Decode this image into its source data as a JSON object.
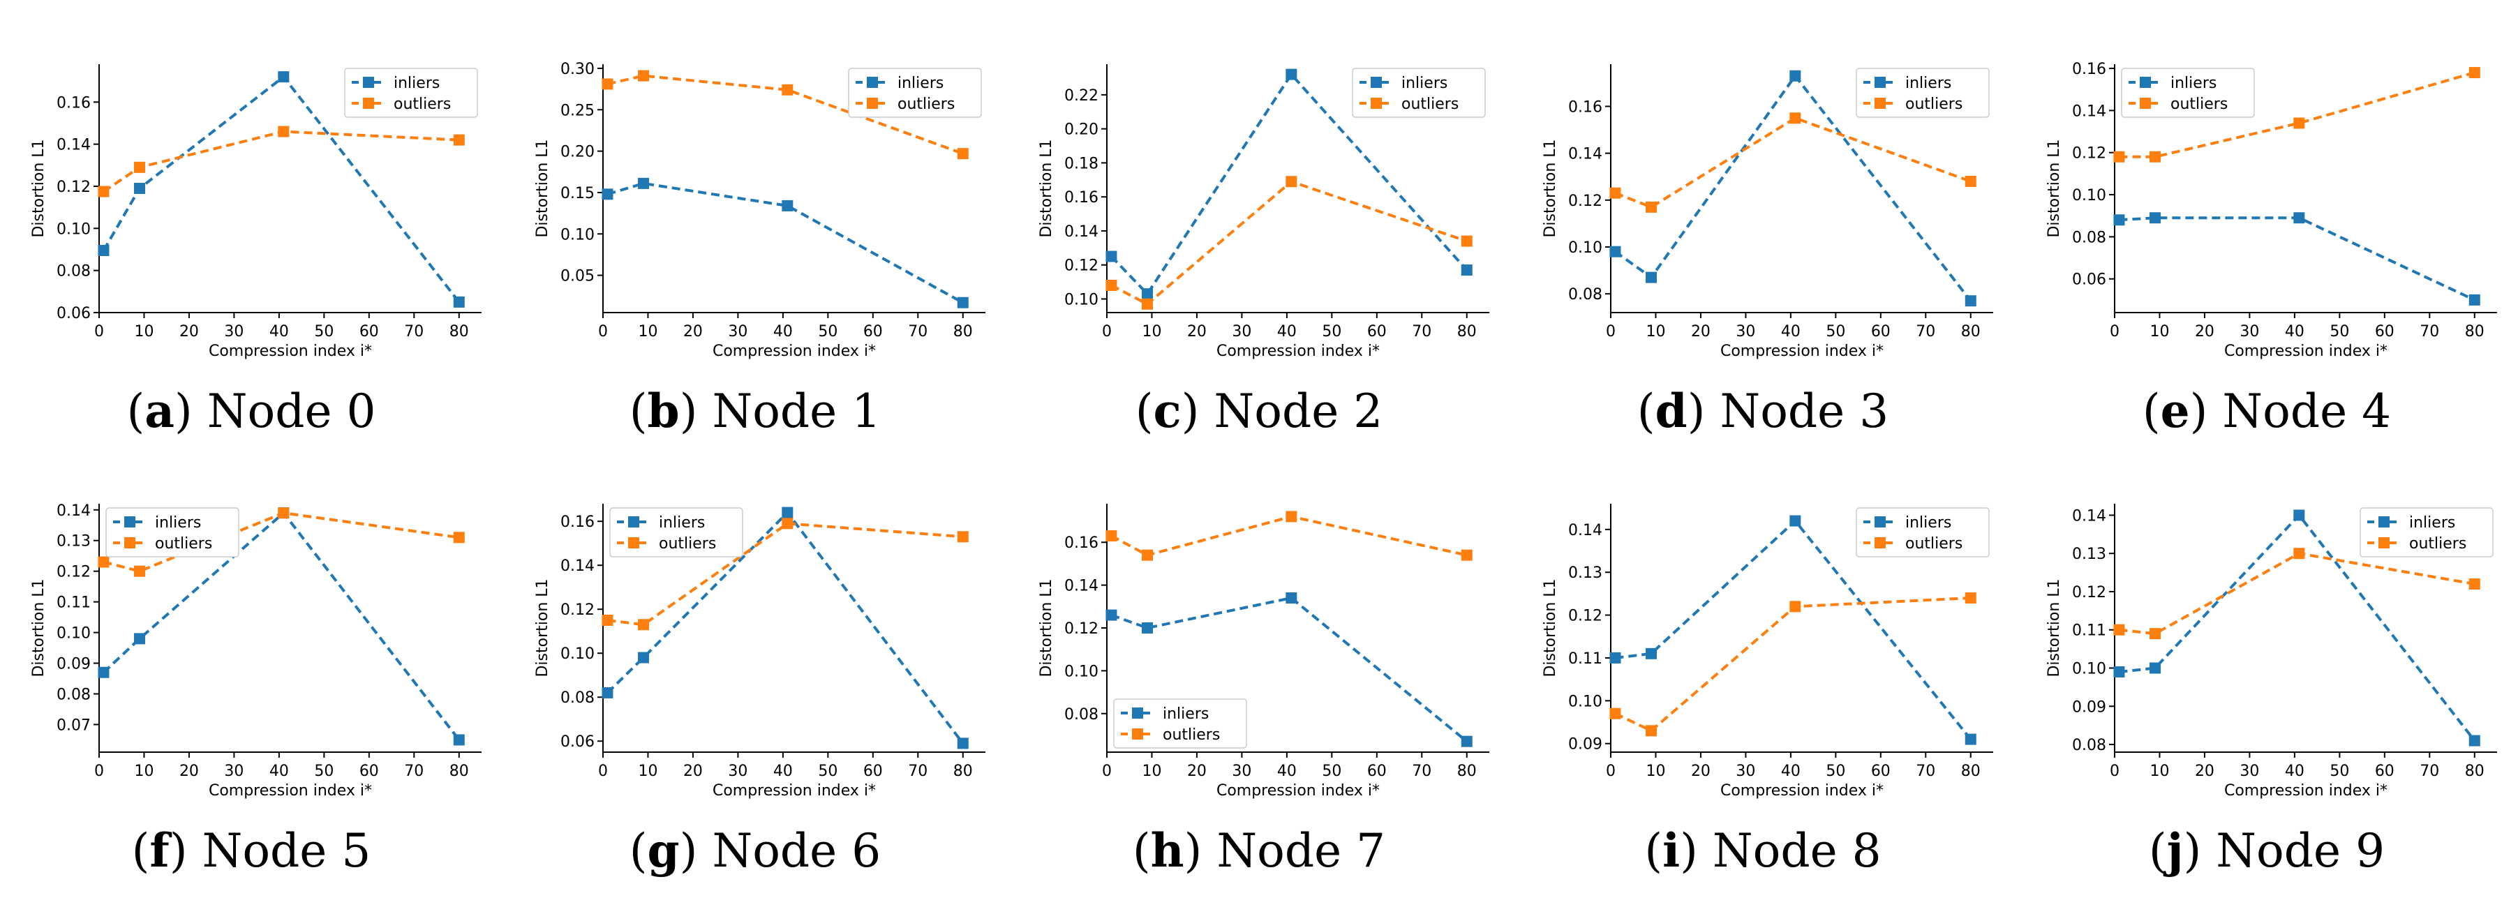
{
  "colors": {
    "inliers": "#1f77b4",
    "outliers": "#ff7f0e",
    "axis": "#000000"
  },
  "xlabel": "Compression index i*",
  "ylabel": "Distortion L1",
  "series_names": [
    "inliers",
    "outliers"
  ],
  "chart_data": [
    {
      "type": "line",
      "panel": "a",
      "caption_letter": "a",
      "caption_text": "Node 0",
      "x": [
        1,
        9,
        41,
        80
      ],
      "series": [
        {
          "name": "inliers",
          "values": [
            0.0895,
            0.119,
            0.172,
            0.065
          ]
        },
        {
          "name": "outliers",
          "values": [
            0.1175,
            0.129,
            0.146,
            0.142
          ]
        }
      ],
      "xlim": [
        0,
        85
      ],
      "ylim": [
        0.06,
        0.178
      ],
      "xticks": [
        0,
        10,
        20,
        30,
        40,
        50,
        60,
        70,
        80
      ],
      "yticks": [
        0.06,
        0.08,
        0.1,
        0.12,
        0.14,
        0.16
      ],
      "ytick_labels": [
        "0.06",
        "0.08",
        "0.10",
        "0.12",
        "0.14",
        "0.16"
      ],
      "xlabel": "Compression index i*",
      "ylabel": "Distortion L1",
      "legend": "top-right"
    },
    {
      "type": "line",
      "panel": "b",
      "caption_letter": "b",
      "caption_text": "Node 1",
      "x": [
        1,
        9,
        41,
        80
      ],
      "series": [
        {
          "name": "inliers",
          "values": [
            0.148,
            0.161,
            0.134,
            0.017
          ]
        },
        {
          "name": "outliers",
          "values": [
            0.281,
            0.291,
            0.274,
            0.197
          ]
        }
      ],
      "xlim": [
        0,
        85
      ],
      "ylim": [
        0.005,
        0.305
      ],
      "xticks": [
        0,
        10,
        20,
        30,
        40,
        50,
        60,
        70,
        80
      ],
      "yticks": [
        0.05,
        0.1,
        0.15,
        0.2,
        0.25,
        0.3
      ],
      "ytick_labels": [
        "0.05",
        "0.10",
        "0.15",
        "0.20",
        "0.25",
        "0.30"
      ],
      "xlabel": "Compression index i*",
      "ylabel": "Distortion L1",
      "legend": "top-right"
    },
    {
      "type": "line",
      "panel": "c",
      "caption_letter": "c",
      "caption_text": "Node 2",
      "x": [
        1,
        9,
        41,
        80
      ],
      "series": [
        {
          "name": "inliers",
          "values": [
            0.125,
            0.103,
            0.232,
            0.117
          ]
        },
        {
          "name": "outliers",
          "values": [
            0.108,
            0.097,
            0.169,
            0.134
          ]
        }
      ],
      "xlim": [
        0,
        85
      ],
      "ylim": [
        0.092,
        0.238
      ],
      "xticks": [
        0,
        10,
        20,
        30,
        40,
        50,
        60,
        70,
        80
      ],
      "yticks": [
        0.1,
        0.12,
        0.14,
        0.16,
        0.18,
        0.2,
        0.22
      ],
      "ytick_labels": [
        "0.10",
        "0.12",
        "0.14",
        "0.16",
        "0.18",
        "0.20",
        "0.22"
      ],
      "xlabel": "Compression index i*",
      "ylabel": "Distortion L1",
      "legend": "top-right"
    },
    {
      "type": "line",
      "panel": "d",
      "caption_letter": "d",
      "caption_text": "Node 3",
      "x": [
        1,
        9,
        41,
        80
      ],
      "series": [
        {
          "name": "inliers",
          "values": [
            0.098,
            0.087,
            0.173,
            0.077
          ]
        },
        {
          "name": "outliers",
          "values": [
            0.123,
            0.117,
            0.155,
            0.128
          ]
        }
      ],
      "xlim": [
        0,
        85
      ],
      "ylim": [
        0.072,
        0.178
      ],
      "xticks": [
        0,
        10,
        20,
        30,
        40,
        50,
        60,
        70,
        80
      ],
      "yticks": [
        0.08,
        0.1,
        0.12,
        0.14,
        0.16
      ],
      "ytick_labels": [
        "0.08",
        "0.10",
        "0.12",
        "0.14",
        "0.16"
      ],
      "xlabel": "Compression index i*",
      "ylabel": "Distortion L1",
      "legend": "top-right"
    },
    {
      "type": "line",
      "panel": "e",
      "caption_letter": "e",
      "caption_text": "Node 4",
      "x": [
        1,
        9,
        41,
        80
      ],
      "series": [
        {
          "name": "inliers",
          "values": [
            0.088,
            0.089,
            0.089,
            0.05
          ]
        },
        {
          "name": "outliers",
          "values": [
            0.118,
            0.118,
            0.134,
            0.158
          ]
        }
      ],
      "xlim": [
        0,
        85
      ],
      "ylim": [
        0.044,
        0.162
      ],
      "xticks": [
        0,
        10,
        20,
        30,
        40,
        50,
        60,
        70,
        80
      ],
      "yticks": [
        0.06,
        0.08,
        0.1,
        0.12,
        0.14,
        0.16
      ],
      "ytick_labels": [
        "0.06",
        "0.08",
        "0.10",
        "0.12",
        "0.14",
        "0.16"
      ],
      "xlabel": "Compression index i*",
      "ylabel": "Distortion L1",
      "legend": "top-left"
    },
    {
      "type": "line",
      "panel": "f",
      "caption_letter": "f",
      "caption_text": "Node 5",
      "x": [
        1,
        9,
        41,
        80
      ],
      "series": [
        {
          "name": "inliers",
          "values": [
            0.087,
            0.098,
            0.139,
            0.065
          ]
        },
        {
          "name": "outliers",
          "values": [
            0.123,
            0.12,
            0.139,
            0.131
          ]
        }
      ],
      "xlim": [
        0,
        85
      ],
      "ylim": [
        0.061,
        0.142
      ],
      "xticks": [
        0,
        10,
        20,
        30,
        40,
        50,
        60,
        70,
        80
      ],
      "yticks": [
        0.07,
        0.08,
        0.09,
        0.1,
        0.11,
        0.12,
        0.13,
        0.14
      ],
      "ytick_labels": [
        "0.07",
        "0.08",
        "0.09",
        "0.10",
        "0.11",
        "0.12",
        "0.13",
        "0.14"
      ],
      "xlabel": "Compression index i*",
      "ylabel": "Distortion L1",
      "legend": "top-left"
    },
    {
      "type": "line",
      "panel": "g",
      "caption_letter": "g",
      "caption_text": "Node 6",
      "x": [
        1,
        9,
        41,
        80
      ],
      "series": [
        {
          "name": "inliers",
          "values": [
            0.082,
            0.098,
            0.164,
            0.059
          ]
        },
        {
          "name": "outliers",
          "values": [
            0.115,
            0.113,
            0.159,
            0.153
          ]
        }
      ],
      "xlim": [
        0,
        85
      ],
      "ylim": [
        0.055,
        0.168
      ],
      "xticks": [
        0,
        10,
        20,
        30,
        40,
        50,
        60,
        70,
        80
      ],
      "yticks": [
        0.06,
        0.08,
        0.1,
        0.12,
        0.14,
        0.16
      ],
      "ytick_labels": [
        "0.06",
        "0.08",
        "0.10",
        "0.12",
        "0.14",
        "0.16"
      ],
      "xlabel": "Compression index i*",
      "ylabel": "Distortion L1",
      "legend": "top-left"
    },
    {
      "type": "line",
      "panel": "h",
      "caption_letter": "h",
      "caption_text": "Node 7",
      "x": [
        1,
        9,
        41,
        80
      ],
      "series": [
        {
          "name": "inliers",
          "values": [
            0.126,
            0.12,
            0.134,
            0.067
          ]
        },
        {
          "name": "outliers",
          "values": [
            0.163,
            0.154,
            0.172,
            0.154
          ]
        }
      ],
      "xlim": [
        0,
        85
      ],
      "ylim": [
        0.062,
        0.178
      ],
      "xticks": [
        0,
        10,
        20,
        30,
        40,
        50,
        60,
        70,
        80
      ],
      "yticks": [
        0.08,
        0.1,
        0.12,
        0.14,
        0.16
      ],
      "ytick_labels": [
        "0.08",
        "0.10",
        "0.12",
        "0.14",
        "0.16"
      ],
      "xlabel": "Compression index i*",
      "ylabel": "Distortion L1",
      "legend": "bottom-left"
    },
    {
      "type": "line",
      "panel": "i",
      "caption_letter": "i",
      "caption_text": "Node 8",
      "x": [
        1,
        9,
        41,
        80
      ],
      "series": [
        {
          "name": "inliers",
          "values": [
            0.11,
            0.111,
            0.142,
            0.091
          ]
        },
        {
          "name": "outliers",
          "values": [
            0.097,
            0.093,
            0.122,
            0.124
          ]
        }
      ],
      "xlim": [
        0,
        85
      ],
      "ylim": [
        0.088,
        0.146
      ],
      "xticks": [
        0,
        10,
        20,
        30,
        40,
        50,
        60,
        70,
        80
      ],
      "yticks": [
        0.09,
        0.1,
        0.11,
        0.12,
        0.13,
        0.14
      ],
      "ytick_labels": [
        "0.09",
        "0.10",
        "0.11",
        "0.12",
        "0.13",
        "0.14"
      ],
      "xlabel": "Compression index i*",
      "ylabel": "Distortion L1",
      "legend": "top-right"
    },
    {
      "type": "line",
      "panel": "j",
      "caption_letter": "j",
      "caption_text": "Node 9",
      "x": [
        1,
        9,
        41,
        80
      ],
      "series": [
        {
          "name": "inliers",
          "values": [
            0.099,
            0.1,
            0.14,
            0.081
          ]
        },
        {
          "name": "outliers",
          "values": [
            0.11,
            0.109,
            0.13,
            0.122
          ]
        }
      ],
      "xlim": [
        0,
        85
      ],
      "ylim": [
        0.078,
        0.143
      ],
      "xticks": [
        0,
        10,
        20,
        30,
        40,
        50,
        60,
        70,
        80
      ],
      "yticks": [
        0.08,
        0.09,
        0.1,
        0.11,
        0.12,
        0.13,
        0.14
      ],
      "ytick_labels": [
        "0.08",
        "0.09",
        "0.10",
        "0.11",
        "0.12",
        "0.13",
        "0.14"
      ],
      "xlabel": "Compression index i*",
      "ylabel": "Distortion L1",
      "legend": "top-right"
    }
  ]
}
